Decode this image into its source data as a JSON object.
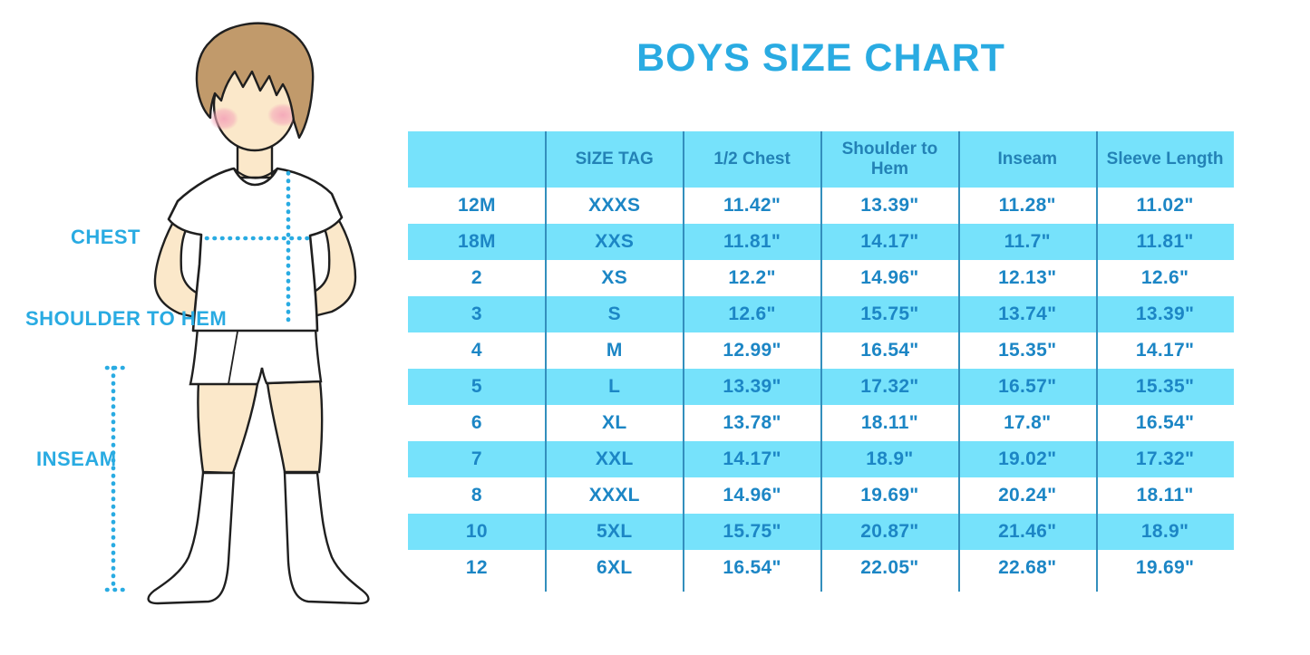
{
  "title": "BOYS SIZE CHART",
  "figure": {
    "description": "illustration of a boy wearing a white t-shirt, white shorts and knee socks with measurement guides",
    "labels": {
      "chest": "CHEST",
      "shoulder_to_hem": "SHOULDER TO HEM",
      "inseam": "INSEAM"
    }
  },
  "chart_data": {
    "type": "table",
    "columns": [
      "",
      "SIZE TAG",
      "1/2 Chest",
      "Shoulder to Hem",
      "Inseam",
      "Sleeve Length"
    ],
    "rows": [
      [
        "12M",
        "XXXS",
        "11.42\"",
        "13.39\"",
        "11.28\"",
        "11.02\""
      ],
      [
        "18M",
        "XXS",
        "11.81\"",
        "14.17\"",
        "11.7\"",
        "11.81\""
      ],
      [
        "2",
        "XS",
        "12.2\"",
        "14.96\"",
        "12.13\"",
        "12.6\""
      ],
      [
        "3",
        "S",
        "12.6\"",
        "15.75\"",
        "13.74\"",
        "13.39\""
      ],
      [
        "4",
        "M",
        "12.99\"",
        "16.54\"",
        "15.35\"",
        "14.17\""
      ],
      [
        "5",
        "L",
        "13.39\"",
        "17.32\"",
        "16.57\"",
        "15.35\""
      ],
      [
        "6",
        "XL",
        "13.78\"",
        "18.11\"",
        "17.8\"",
        "16.54\""
      ],
      [
        "7",
        "XXL",
        "14.17\"",
        "18.9\"",
        "19.02\"",
        "17.32\""
      ],
      [
        "8",
        "XXXL",
        "14.96\"",
        "19.69\"",
        "20.24\"",
        "18.11\""
      ],
      [
        "10",
        "5XL",
        "15.75\"",
        "20.87\"",
        "21.46\"",
        "18.9\""
      ],
      [
        "12",
        "6XL",
        "16.54\"",
        "22.05\"",
        "22.68\"",
        "19.69\""
      ]
    ],
    "striped_row_indices": [
      1,
      3,
      5,
      7,
      9
    ],
    "header_striped": true
  },
  "colors": {
    "accent_blue": "#29ABE2",
    "table_text": "#1C86C5",
    "stripe_cyan": "#76E2FB",
    "separator_blue": "#338FBD",
    "skin": "#FBE8CA",
    "hair": "#C19A6B",
    "blush": "#F4A7B9",
    "outline": "#1F1F1F"
  }
}
